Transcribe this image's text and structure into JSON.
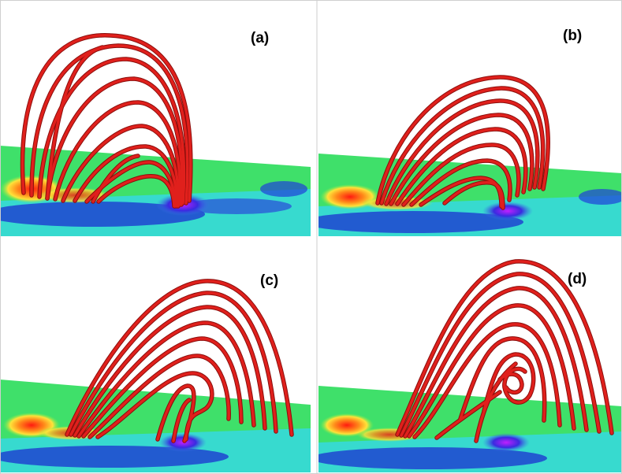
{
  "panels": [
    {
      "id": "a",
      "label": "(a)"
    },
    {
      "id": "b",
      "label": "(b)"
    },
    {
      "id": "c",
      "label": "(c)"
    },
    {
      "id": "d",
      "label": "(d)"
    }
  ],
  "colors": {
    "field_line": "#e0201c",
    "field_line_dark": "#8a0e0c",
    "magnetogram_green": "#39e05a",
    "magnetogram_cyan": "#37e6e6",
    "magnetogram_blue": "#1e3ad6",
    "positive_pole": "#ff2a1a",
    "negative_pole": "#a020e0"
  }
}
